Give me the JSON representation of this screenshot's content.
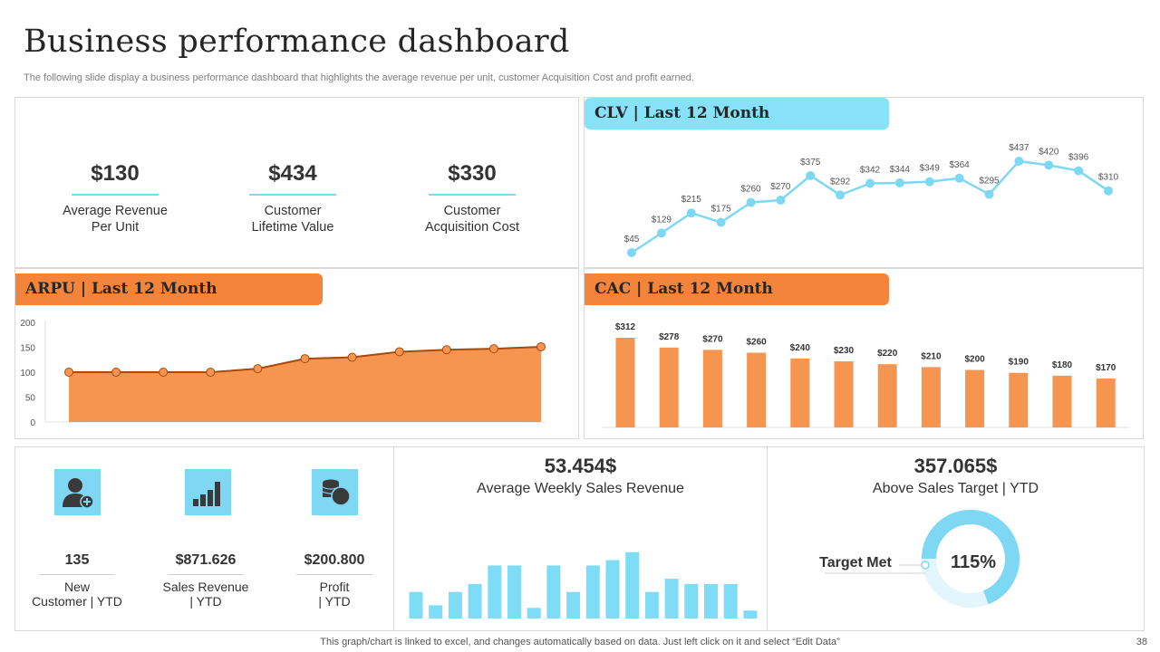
{
  "header": {
    "title": "Business performance dashboard",
    "subtitle": "The following slide display a business performance dashboard that highlights the average revenue per unit, customer Acquisition Cost and profit earned."
  },
  "kpis": [
    {
      "value": "$130",
      "label": "Average Revenue Per Unit"
    },
    {
      "value": "$434",
      "label": "Customer Lifetime Value"
    },
    {
      "value": "$330",
      "label": "Customer Acquisition Cost"
    }
  ],
  "colors": {
    "blue": "#87e1f9",
    "orange": "#f4843a",
    "line_blue": "#7fd8f3",
    "area_orange": "#f5954f",
    "bar_orange": "#f5954f",
    "bar_blue": "#7fdcf7"
  },
  "chart_data": [
    {
      "id": "clv",
      "type": "line",
      "title": "CLV | Last 12 Month",
      "values": [
        45,
        129,
        215,
        175,
        260,
        270,
        375,
        292,
        342,
        344,
        349,
        364,
        295,
        437,
        420,
        396,
        310
      ],
      "labels": [
        "$45",
        "$129",
        "$215",
        "$175",
        "$260",
        "$270",
        "$375",
        "$292",
        "$342",
        "$344",
        "$349",
        "$364",
        "$295",
        "$437",
        "$420",
        "$396",
        "$310"
      ]
    },
    {
      "id": "arpu",
      "type": "area",
      "title": "ARPU | Last 12 Month",
      "values": [
        100,
        100,
        100,
        100,
        107,
        127,
        130,
        141,
        145,
        147,
        151
      ],
      "ylim": [
        0,
        200
      ],
      "yticks": [
        "0",
        "50",
        "100",
        "150",
        "200"
      ]
    },
    {
      "id": "cac",
      "type": "bar",
      "title": "CAC | Last 12 Month",
      "values": [
        312,
        278,
        270,
        260,
        240,
        230,
        220,
        210,
        200,
        190,
        180,
        170
      ],
      "labels": [
        "$312",
        "$278",
        "$270",
        "$260",
        "$240",
        "$230",
        "$220",
        "$210",
        "$200",
        "$190",
        "$180",
        "$170"
      ]
    },
    {
      "id": "weekly",
      "type": "bar",
      "title": "Average Weekly Sales Revenue",
      "values": [
        10,
        5,
        10,
        13,
        20,
        20,
        4,
        20,
        10,
        20,
        22,
        25,
        10,
        15,
        13,
        13,
        13,
        3
      ]
    }
  ],
  "stats": [
    {
      "icon": "add-user-icon",
      "value": "135",
      "label_line1": "New",
      "label_line2": "Customer | YTD"
    },
    {
      "icon": "bar-chart-icon",
      "value": "$871.626",
      "label_line1": "Sales Revenue",
      "label_line2": "| YTD"
    },
    {
      "icon": "coins-icon",
      "value": "$200.800",
      "label_line1": "Profit",
      "label_line2": "| YTD"
    }
  ],
  "weekly": {
    "value": "53.454$",
    "label": "Average Weekly Sales Revenue"
  },
  "target": {
    "value": "357.065$",
    "label": "Above Sales Target | YTD",
    "callout": "Target Met",
    "percent_label": "115%",
    "percent": 115
  },
  "footer": {
    "note": "This graph/chart is linked to excel, and changes automatically based on data. Just left click on it and select “Edit Data”",
    "page": "38"
  }
}
